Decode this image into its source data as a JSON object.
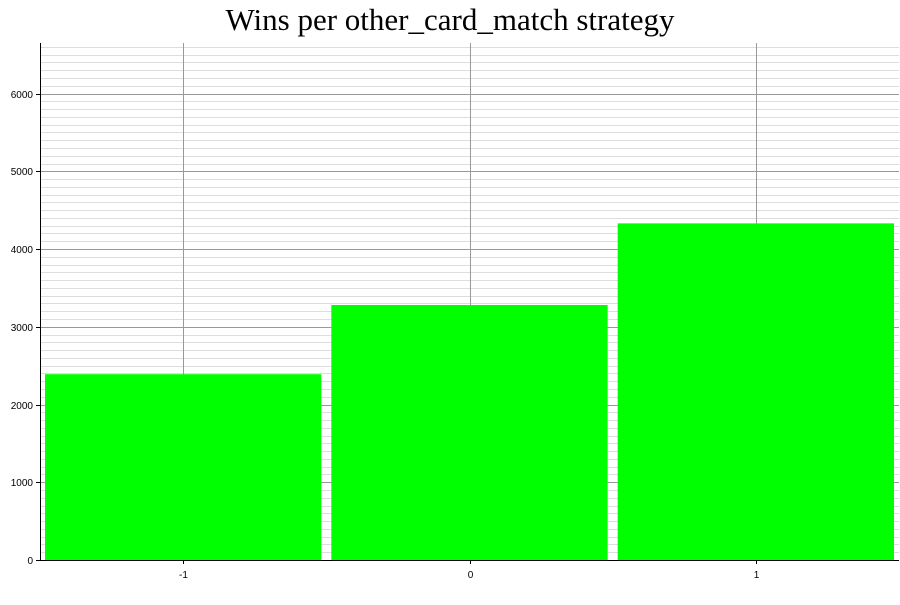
{
  "chart_data": {
    "type": "bar",
    "title": "Wins per other_card_match strategy",
    "xlabel": "",
    "ylabel": "",
    "categories": [
      "-1",
      "0",
      "1"
    ],
    "values": [
      2390,
      3280,
      4330
    ],
    "ylim": [
      0,
      6650
    ],
    "y_ticks": [
      0,
      1000,
      2000,
      3000,
      4000,
      5000,
      6000
    ],
    "y_minor_step": 100,
    "grid": true,
    "legend": "none",
    "colors": {
      "bar": "#00ff00",
      "major_grid": "#999999",
      "minor_grid": "#dddddd",
      "axis": "#000000"
    }
  }
}
